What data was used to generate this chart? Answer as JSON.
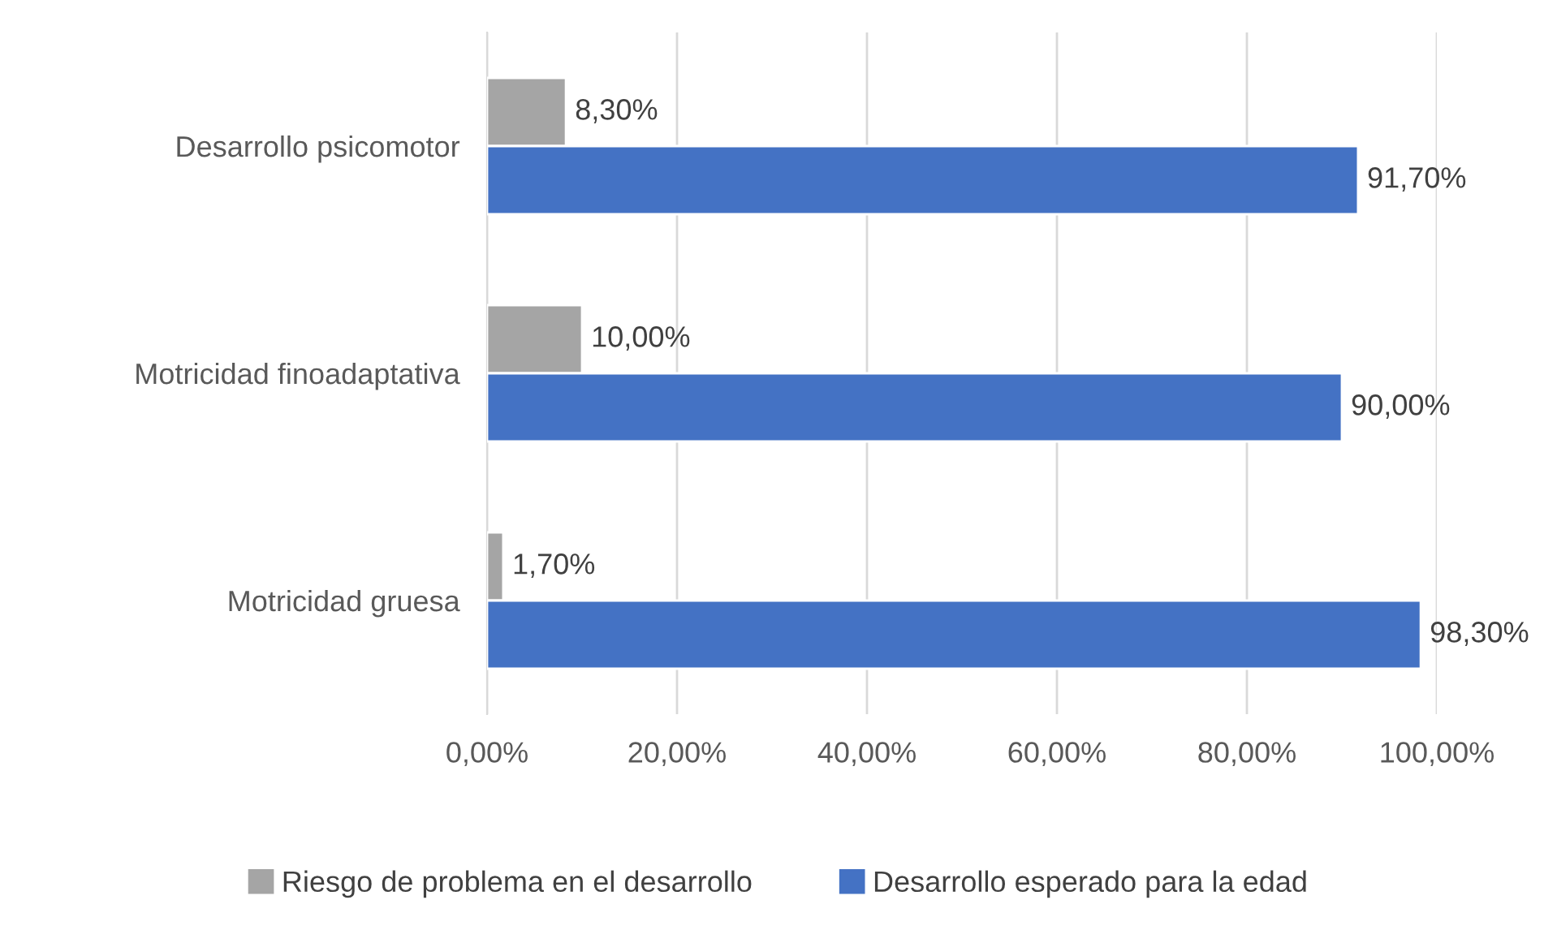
{
  "chart_data": {
    "type": "bar",
    "orientation": "horizontal",
    "categories": [
      "Desarrollo psicomotor",
      "Motricidad finoadaptativa",
      "Motricidad gruesa"
    ],
    "series": [
      {
        "name": "Riesgo de problema en el desarrollo",
        "color": "#a5a5a5",
        "values": [
          8.3,
          10.0,
          1.7
        ],
        "value_labels": [
          "8,30%",
          "10,00%",
          "1,70%"
        ]
      },
      {
        "name": "Desarrollo esperado para la edad",
        "color": "#4472c4",
        "values": [
          91.7,
          90.0,
          98.3
        ],
        "value_labels": [
          "91,70%",
          "90,00%",
          "98,30%"
        ]
      }
    ],
    "xlim": [
      0,
      100
    ],
    "xticks": [
      {
        "value": 0,
        "label": "0,00%"
      },
      {
        "value": 20,
        "label": "20,00%"
      },
      {
        "value": 40,
        "label": "40,00%"
      },
      {
        "value": 60,
        "label": "60,00%"
      },
      {
        "value": 80,
        "label": "80,00%"
      },
      {
        "value": 100,
        "label": "100,00%"
      }
    ],
    "grid": "x",
    "legend": "bottom"
  }
}
